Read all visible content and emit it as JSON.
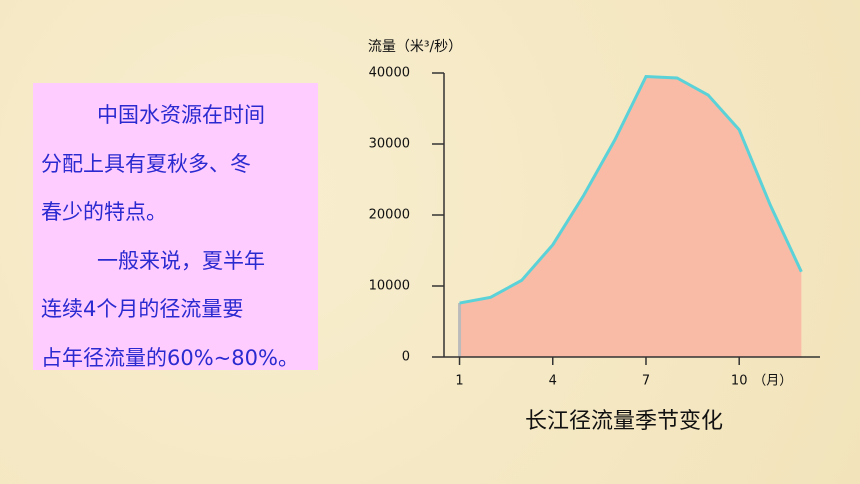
{
  "text": {
    "lines": [
      "中国水资源在时间",
      "分配上具有夏秋多、冬",
      "春少的特点。",
      "一般来说，夏半年",
      "连续4个月的径流量要",
      "占年径流量的60%~80%。"
    ],
    "indented": [
      0,
      3
    ]
  },
  "chart_data": {
    "type": "area",
    "title": "长江径流量季节变化",
    "y_label": "流量（米³/秒）",
    "x_label": "（月）",
    "x": [
      1,
      2,
      3,
      4,
      5,
      6,
      7,
      8,
      9,
      10,
      11,
      12
    ],
    "values": [
      7600,
      8400,
      10800,
      15800,
      22800,
      30600,
      39500,
      39300,
      36900,
      32000,
      21400,
      12000
    ],
    "color": "#f9bba6",
    "line_color": "#5ad2d8",
    "xlim": [
      0.5,
      12.6
    ],
    "xticks": [
      1,
      4,
      7,
      10
    ],
    "ylim": [
      0,
      40000
    ],
    "yticks": [
      0,
      10000,
      20000,
      30000,
      40000
    ]
  }
}
